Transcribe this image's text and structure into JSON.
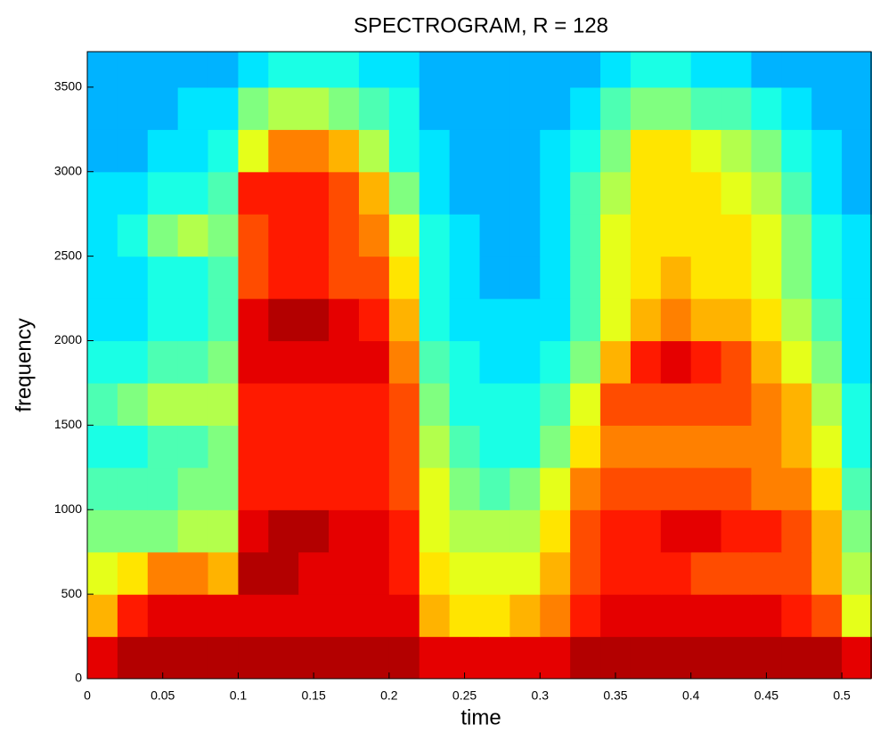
{
  "chart_data": {
    "type": "heatmap",
    "title": "SPECTROGRAM, R = 128",
    "xlabel": "time",
    "ylabel": "frequency",
    "colormap": "jet",
    "zlim": [
      0,
      10
    ],
    "xlim": [
      0,
      0.52
    ],
    "xticks": [
      0,
      0.05,
      0.1,
      0.15,
      0.2,
      0.25,
      0.3,
      0.35,
      0.4,
      0.45,
      0.5
    ],
    "ylim": [
      0,
      3710
    ],
    "yticks": [
      0,
      500,
      1000,
      1500,
      2000,
      2500,
      3000,
      3500
    ],
    "x_edges": [
      0,
      0.02,
      0.04,
      0.06,
      0.08,
      0.1,
      0.12,
      0.14,
      0.16,
      0.18,
      0.2,
      0.22,
      0.24,
      0.26,
      0.28,
      0.3,
      0.32,
      0.34,
      0.36,
      0.38,
      0.4,
      0.42,
      0.44,
      0.46,
      0.48,
      0.5,
      0.52
    ],
    "y_edges": [
      0,
      250,
      500,
      750,
      1000,
      1250,
      1500,
      1750,
      2000,
      2250,
      2500,
      2750,
      3000,
      3250,
      3500,
      3710
    ],
    "z": [
      [
        9,
        9.5,
        9.5,
        9.5,
        9.5,
        9.5,
        9.5,
        9.5,
        9.5,
        9.5,
        9.5,
        9,
        9,
        9,
        9,
        9,
        9.5,
        9.5,
        9.5,
        9.5,
        9.5,
        9.5,
        9.5,
        9.5,
        9.5,
        9
      ],
      [
        7,
        8.5,
        9,
        9,
        9,
        9,
        9,
        9,
        9,
        9,
        9,
        7,
        6.5,
        6.5,
        7,
        7.5,
        8.5,
        9,
        9,
        9,
        9,
        9,
        9,
        8.5,
        8,
        6
      ],
      [
        6,
        6.5,
        7.5,
        7.5,
        7,
        9.5,
        9.5,
        9,
        9,
        9,
        8.5,
        6.5,
        6,
        6,
        6,
        7,
        8,
        8.5,
        8.5,
        8.5,
        8,
        8,
        8,
        8,
        7,
        5.5
      ],
      [
        5,
        5,
        5,
        5.5,
        5.5,
        9,
        9.5,
        9.5,
        9,
        9,
        8.5,
        6,
        5.5,
        5.5,
        5.5,
        6.5,
        8,
        8.5,
        8.5,
        9,
        9,
        8.5,
        8.5,
        8,
        7,
        5
      ],
      [
        4.5,
        4.5,
        4.5,
        5,
        5,
        8.5,
        8.5,
        8.5,
        8.5,
        8.5,
        8,
        6,
        5,
        4.5,
        5,
        6,
        7.5,
        8,
        8,
        8,
        8,
        8,
        7.5,
        7.5,
        6.5,
        4.5
      ],
      [
        4,
        4,
        4.5,
        4.5,
        5,
        8.5,
        8.5,
        8.5,
        8.5,
        8.5,
        8,
        5.5,
        4.5,
        4,
        4,
        5,
        6.5,
        7.5,
        7.5,
        7.5,
        7.5,
        7.5,
        7.5,
        7,
        6,
        4
      ],
      [
        4.5,
        5,
        5.5,
        5.5,
        5.5,
        8.5,
        8.5,
        8.5,
        8.5,
        8.5,
        8,
        5,
        4,
        4,
        4,
        4.5,
        6,
        8,
        8,
        8,
        8,
        8,
        7.5,
        7,
        5.5,
        4
      ],
      [
        4,
        4,
        4.5,
        4.5,
        5,
        9,
        9,
        9,
        9,
        9,
        7.5,
        4.5,
        4,
        3.5,
        3.5,
        4,
        5,
        7,
        8.5,
        9,
        8.5,
        8,
        7,
        6,
        5,
        3.5
      ],
      [
        3.5,
        3.5,
        4,
        4,
        4.5,
        9,
        9.5,
        9.5,
        9,
        8.5,
        7,
        4,
        3.5,
        3.5,
        3.5,
        3.5,
        4.5,
        6,
        7,
        7.5,
        7,
        7,
        6.5,
        5.5,
        4.5,
        3.5
      ],
      [
        3.5,
        3.5,
        4,
        4,
        4.5,
        8,
        8.5,
        8.5,
        8,
        8,
        6.5,
        4,
        3.5,
        3,
        3,
        3.5,
        4.5,
        6,
        6.5,
        7,
        6.5,
        6.5,
        6,
        5,
        4,
        3.5
      ],
      [
        3.5,
        4,
        5,
        5.5,
        5,
        8,
        8.5,
        8.5,
        8,
        7.5,
        6,
        4,
        3.5,
        3,
        3,
        3.5,
        4.5,
        6,
        6.5,
        6.5,
        6.5,
        6.5,
        6,
        5,
        4,
        3.5
      ],
      [
        3.5,
        3.5,
        4,
        4,
        4.5,
        8.5,
        8.5,
        8.5,
        8,
        7,
        5,
        3.5,
        3,
        3,
        3,
        3.5,
        4.5,
        5.5,
        6.5,
        6.5,
        6.5,
        6,
        5.5,
        4.5,
        3.5,
        3
      ],
      [
        3,
        3,
        3.5,
        3.5,
        4,
        6,
        7.5,
        7.5,
        7,
        5.5,
        4,
        3.5,
        3,
        3,
        3,
        3.5,
        4,
        5,
        6.5,
        6.5,
        6,
        5.5,
        5,
        4,
        3.5,
        3
      ],
      [
        3,
        3,
        3,
        3.5,
        3.5,
        5,
        5.5,
        5.5,
        5,
        4.5,
        4,
        3,
        3,
        3,
        3,
        3,
        3.5,
        4.5,
        5,
        5,
        4.5,
        4.5,
        4,
        3.5,
        3,
        3
      ],
      [
        3,
        3,
        3,
        3,
        3,
        3.5,
        4,
        4,
        4,
        3.5,
        3.5,
        3,
        3,
        3,
        3,
        3,
        3,
        3.5,
        4,
        4,
        3.5,
        3.5,
        3,
        3,
        3,
        3
      ]
    ]
  }
}
